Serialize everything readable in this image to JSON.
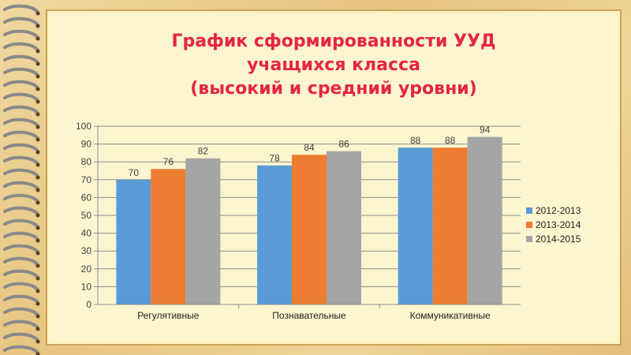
{
  "title_lines": [
    "График сформированности УУД",
    "учащихся класса",
    "(высокий и средний уровни)"
  ],
  "chart_data": {
    "type": "bar",
    "categories": [
      "Регулятивные",
      "Познавательные",
      "Коммуникативные"
    ],
    "series": [
      {
        "name": "2012-2013",
        "values": [
          70,
          78,
          88
        ],
        "color": "#5b9bd5"
      },
      {
        "name": "2013-2014",
        "values": [
          76,
          84,
          88
        ],
        "color": "#ed7d31"
      },
      {
        "name": "2014-2015",
        "values": [
          82,
          86,
          94
        ],
        "color": "#a5a5a5"
      }
    ],
    "yticks": [
      0,
      10,
      20,
      30,
      40,
      50,
      60,
      70,
      80,
      90,
      100
    ],
    "ylim": [
      0,
      100
    ],
    "grid": true,
    "legend_position": "right"
  }
}
